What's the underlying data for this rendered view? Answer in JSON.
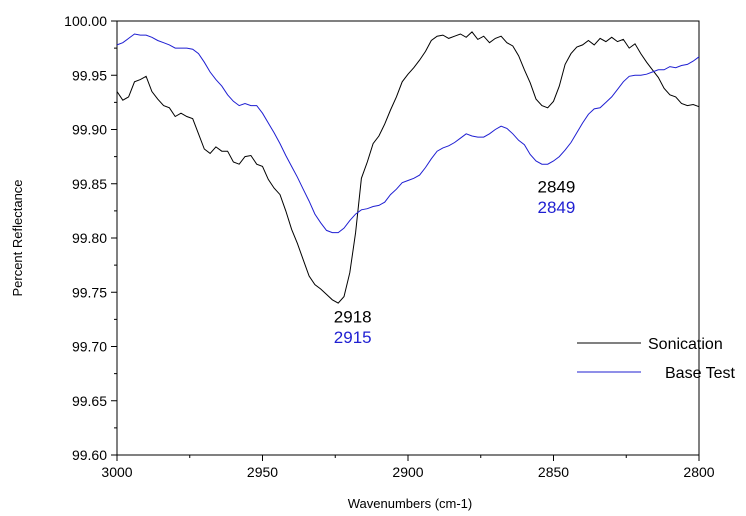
{
  "chart_data": {
    "type": "line",
    "title": "",
    "xlabel": "Wavenumbers (cm-1)",
    "ylabel": "Percent Reflectance",
    "xlim": [
      3000,
      2800
    ],
    "ylim": [
      99.6,
      100.0
    ],
    "x_ticks": [
      "3000",
      "2950",
      "2900",
      "2850",
      "2800"
    ],
    "y_ticks": [
      "99.60",
      "99.65",
      "99.70",
      "99.75",
      "99.80",
      "99.85",
      "99.90",
      "99.95",
      "100.00"
    ],
    "legend_position": "bottom-right",
    "series": [
      {
        "name": "Sonication",
        "color": "#000000",
        "points": [
          [
            3000,
            99.935
          ],
          [
            2998,
            99.927
          ],
          [
            2996,
            99.93
          ],
          [
            2994,
            99.944
          ],
          [
            2992,
            99.946
          ],
          [
            2990,
            99.949
          ],
          [
            2988,
            99.935
          ],
          [
            2986,
            99.928
          ],
          [
            2984,
            99.922
          ],
          [
            2982,
            99.92
          ],
          [
            2980,
            99.912
          ],
          [
            2978,
            99.915
          ],
          [
            2976,
            99.912
          ],
          [
            2974,
            99.91
          ],
          [
            2972,
            99.896
          ],
          [
            2970,
            99.882
          ],
          [
            2968,
            99.878
          ],
          [
            2966,
            99.884
          ],
          [
            2964,
            99.88
          ],
          [
            2962,
            99.88
          ],
          [
            2960,
            99.87
          ],
          [
            2958,
            99.868
          ],
          [
            2956,
            99.875
          ],
          [
            2954,
            99.876
          ],
          [
            2952,
            99.868
          ],
          [
            2950,
            99.866
          ],
          [
            2948,
            99.854
          ],
          [
            2946,
            99.846
          ],
          [
            2944,
            99.84
          ],
          [
            2942,
            99.825
          ],
          [
            2940,
            99.808
          ],
          [
            2938,
            99.795
          ],
          [
            2936,
            99.78
          ],
          [
            2934,
            99.765
          ],
          [
            2932,
            99.757
          ],
          [
            2930,
            99.753
          ],
          [
            2928,
            99.748
          ],
          [
            2926,
            99.743
          ],
          [
            2924,
            99.74
          ],
          [
            2922,
            99.746
          ],
          [
            2920,
            99.768
          ],
          [
            2918,
            99.805
          ],
          [
            2916,
            99.855
          ],
          [
            2914,
            99.87
          ],
          [
            2912,
            99.887
          ],
          [
            2910,
            99.894
          ],
          [
            2908,
            99.905
          ],
          [
            2906,
            99.918
          ],
          [
            2904,
            99.93
          ],
          [
            2902,
            99.944
          ],
          [
            2900,
            99.951
          ],
          [
            2898,
            99.957
          ],
          [
            2896,
            99.964
          ],
          [
            2894,
            99.972
          ],
          [
            2892,
            99.982
          ],
          [
            2890,
            99.986
          ],
          [
            2888,
            99.987
          ],
          [
            2886,
            99.984
          ],
          [
            2884,
            99.986
          ],
          [
            2882,
            99.988
          ],
          [
            2880,
            99.985
          ],
          [
            2878,
            99.99
          ],
          [
            2876,
            99.983
          ],
          [
            2874,
            99.986
          ],
          [
            2872,
            99.98
          ],
          [
            2870,
            99.984
          ],
          [
            2868,
            99.986
          ],
          [
            2866,
            99.98
          ],
          [
            2864,
            99.977
          ],
          [
            2862,
            99.968
          ],
          [
            2860,
            99.955
          ],
          [
            2858,
            99.943
          ],
          [
            2856,
            99.928
          ],
          [
            2854,
            99.922
          ],
          [
            2852,
            99.92
          ],
          [
            2850,
            99.926
          ],
          [
            2848,
            99.94
          ],
          [
            2846,
            99.96
          ],
          [
            2844,
            99.97
          ],
          [
            2842,
            99.976
          ],
          [
            2840,
            99.978
          ],
          [
            2838,
            99.982
          ],
          [
            2836,
            99.978
          ],
          [
            2834,
            99.984
          ],
          [
            2832,
            99.981
          ],
          [
            2830,
            99.985
          ],
          [
            2828,
            99.981
          ],
          [
            2826,
            99.983
          ],
          [
            2824,
            99.975
          ],
          [
            2822,
            99.979
          ],
          [
            2820,
            99.97
          ],
          [
            2818,
            99.962
          ],
          [
            2816,
            99.955
          ],
          [
            2814,
            99.948
          ],
          [
            2812,
            99.938
          ],
          [
            2810,
            99.932
          ],
          [
            2808,
            99.93
          ],
          [
            2806,
            99.924
          ],
          [
            2804,
            99.922
          ],
          [
            2802,
            99.923
          ],
          [
            2800,
            99.921
          ]
        ]
      },
      {
        "name": "Base Test",
        "color": "#1f1fd2",
        "points": [
          [
            3000,
            99.978
          ],
          [
            2998,
            99.98
          ],
          [
            2996,
            99.984
          ],
          [
            2994,
            99.988
          ],
          [
            2992,
            99.987
          ],
          [
            2990,
            99.987
          ],
          [
            2988,
            99.985
          ],
          [
            2986,
            99.982
          ],
          [
            2984,
            99.98
          ],
          [
            2982,
            99.978
          ],
          [
            2980,
            99.975
          ],
          [
            2978,
            99.975
          ],
          [
            2976,
            99.975
          ],
          [
            2974,
            99.974
          ],
          [
            2972,
            99.97
          ],
          [
            2970,
            99.962
          ],
          [
            2968,
            99.953
          ],
          [
            2966,
            99.946
          ],
          [
            2964,
            99.94
          ],
          [
            2962,
            99.932
          ],
          [
            2960,
            99.926
          ],
          [
            2958,
            99.922
          ],
          [
            2956,
            99.924
          ],
          [
            2954,
            99.922
          ],
          [
            2952,
            99.922
          ],
          [
            2950,
            99.915
          ],
          [
            2948,
            99.906
          ],
          [
            2946,
            99.897
          ],
          [
            2944,
            99.887
          ],
          [
            2942,
            99.876
          ],
          [
            2940,
            99.866
          ],
          [
            2938,
            99.856
          ],
          [
            2936,
            99.845
          ],
          [
            2934,
            99.834
          ],
          [
            2932,
            99.822
          ],
          [
            2930,
            99.814
          ],
          [
            2928,
            99.807
          ],
          [
            2926,
            99.805
          ],
          [
            2924,
            99.805
          ],
          [
            2922,
            99.809
          ],
          [
            2920,
            99.816
          ],
          [
            2918,
            99.822
          ],
          [
            2916,
            99.826
          ],
          [
            2914,
            99.827
          ],
          [
            2912,
            99.829
          ],
          [
            2910,
            99.83
          ],
          [
            2908,
            99.833
          ],
          [
            2906,
            99.84
          ],
          [
            2904,
            99.845
          ],
          [
            2902,
            99.851
          ],
          [
            2900,
            99.853
          ],
          [
            2898,
            99.855
          ],
          [
            2896,
            99.858
          ],
          [
            2894,
            99.865
          ],
          [
            2892,
            99.873
          ],
          [
            2890,
            99.88
          ],
          [
            2888,
            99.883
          ],
          [
            2886,
            99.885
          ],
          [
            2884,
            99.888
          ],
          [
            2882,
            99.892
          ],
          [
            2880,
            99.896
          ],
          [
            2878,
            99.894
          ],
          [
            2876,
            99.893
          ],
          [
            2874,
            99.893
          ],
          [
            2872,
            99.896
          ],
          [
            2870,
            99.9
          ],
          [
            2868,
            99.903
          ],
          [
            2866,
            99.901
          ],
          [
            2864,
            99.896
          ],
          [
            2862,
            99.89
          ],
          [
            2860,
            99.886
          ],
          [
            2858,
            99.877
          ],
          [
            2856,
            99.871
          ],
          [
            2854,
            99.868
          ],
          [
            2852,
            99.868
          ],
          [
            2850,
            99.871
          ],
          [
            2848,
            99.875
          ],
          [
            2846,
            99.881
          ],
          [
            2844,
            99.888
          ],
          [
            2842,
            99.897
          ],
          [
            2840,
            99.906
          ],
          [
            2838,
            99.914
          ],
          [
            2836,
            99.919
          ],
          [
            2834,
            99.92
          ],
          [
            2832,
            99.925
          ],
          [
            2830,
            99.93
          ],
          [
            2828,
            99.937
          ],
          [
            2826,
            99.944
          ],
          [
            2824,
            99.949
          ],
          [
            2822,
            99.95
          ],
          [
            2820,
            99.95
          ],
          [
            2818,
            99.951
          ],
          [
            2816,
            99.953
          ],
          [
            2814,
            99.955
          ],
          [
            2812,
            99.955
          ],
          [
            2810,
            99.958
          ],
          [
            2808,
            99.957
          ],
          [
            2806,
            99.959
          ],
          [
            2804,
            99.96
          ],
          [
            2802,
            99.963
          ],
          [
            2800,
            99.967
          ]
        ]
      }
    ],
    "annotations": [
      {
        "text": "2918",
        "color": "#000000",
        "x": 2919,
        "y": 99.722
      },
      {
        "text": "2915",
        "color": "#1f1fd2",
        "x": 2919,
        "y": 99.703
      },
      {
        "text": "2849",
        "color": "#000000",
        "x": 2849,
        "y": 99.842
      },
      {
        "text": "2849",
        "color": "#1f1fd2",
        "x": 2849,
        "y": 99.823
      }
    ]
  }
}
